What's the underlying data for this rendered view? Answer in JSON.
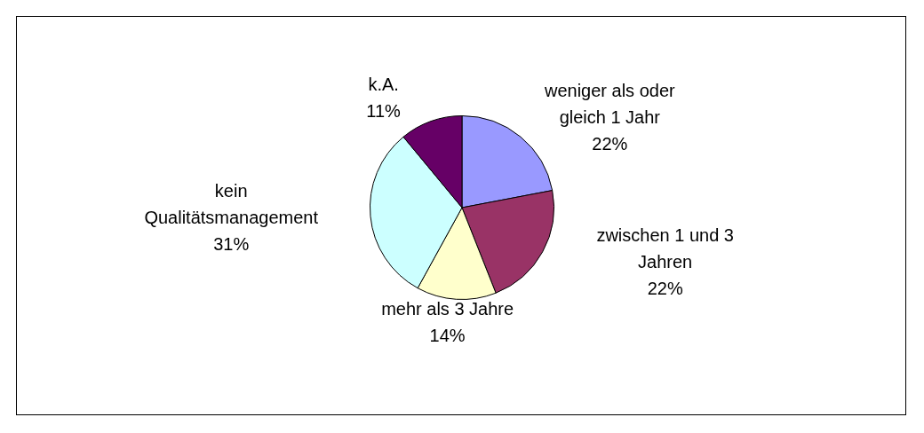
{
  "chart_data": {
    "type": "pie",
    "categories": [
      "weniger als oder gleich 1 Jahr",
      "zwischen 1 und 3 Jahren",
      "mehr als 3 Jahre",
      "kein Qualitätsmanagement",
      "k.A."
    ],
    "values": [
      22,
      22,
      14,
      31,
      11
    ],
    "value_labels": [
      "22%",
      "22%",
      "14%",
      "31%",
      "11%"
    ],
    "colors": [
      "#9999ff",
      "#993366",
      "#ffffcc",
      "#ccffff",
      "#660066"
    ],
    "legend": false
  }
}
